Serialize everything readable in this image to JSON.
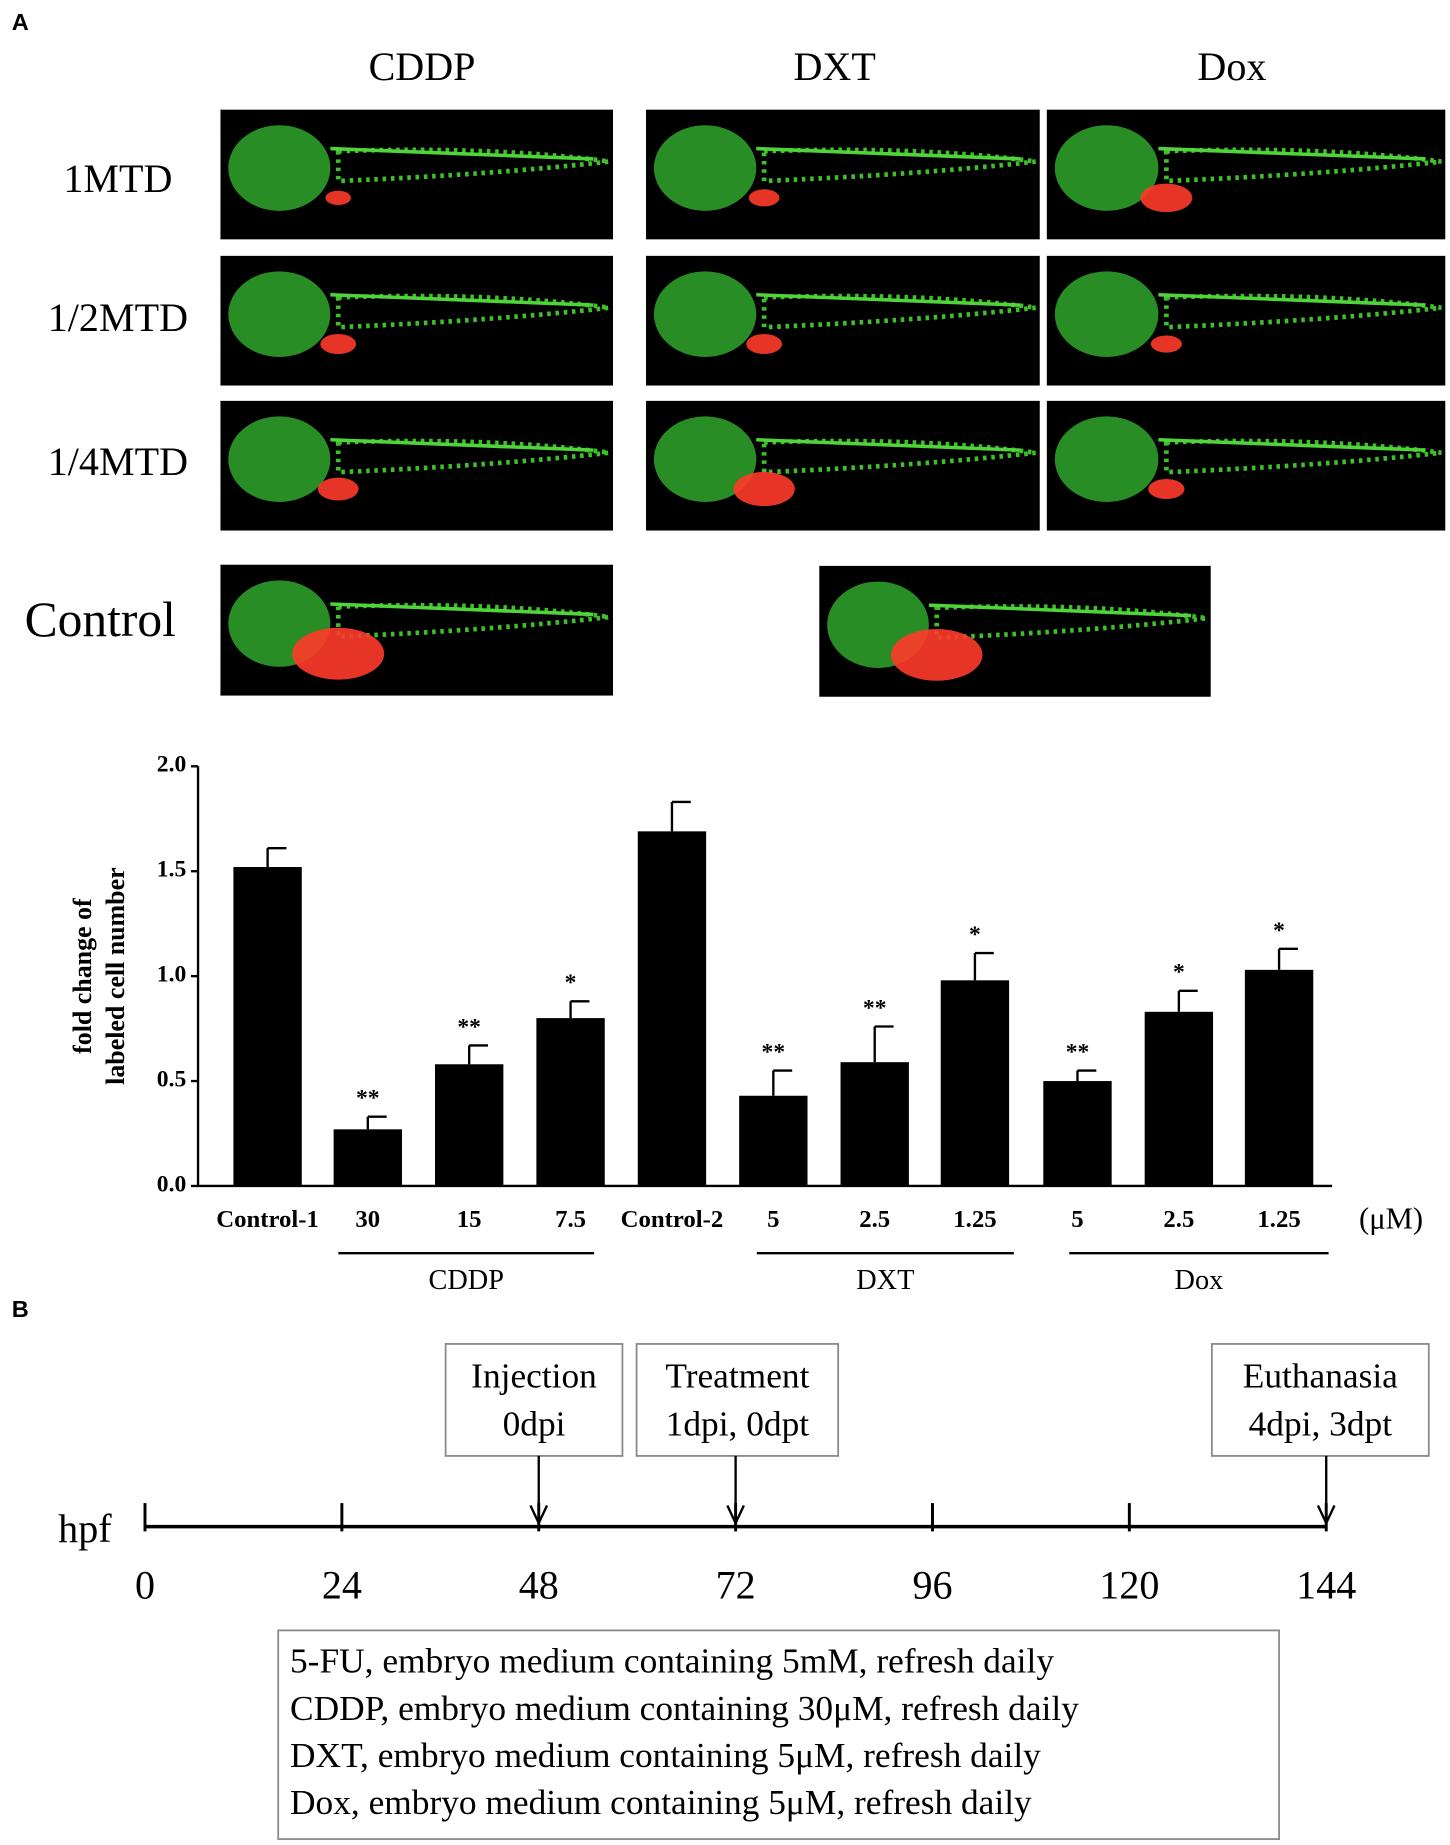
{
  "panel_a": {
    "label": "A",
    "columns": [
      "CDDP",
      "DXT",
      "Dox"
    ],
    "rows": [
      "1MTD",
      "1/2MTD",
      "1/4MTD",
      "Control"
    ]
  },
  "chart_data": {
    "type": "bar",
    "ylabel": [
      "fold change of",
      "labeled cell number"
    ],
    "categories": [
      "Control-1",
      "30",
      "15",
      "7.5",
      "Control-2",
      "5",
      "2.5",
      "1.25",
      "5",
      "2.5",
      "1.25"
    ],
    "values": [
      1.52,
      0.27,
      0.58,
      0.8,
      1.69,
      0.43,
      0.59,
      0.98,
      0.5,
      0.83,
      1.03
    ],
    "errors": [
      0.09,
      0.06,
      0.09,
      0.08,
      0.14,
      0.12,
      0.17,
      0.13,
      0.05,
      0.1,
      0.1
    ],
    "significance": [
      null,
      "**",
      "**",
      "*",
      null,
      "**",
      "**",
      "*",
      "**",
      "*",
      "*"
    ],
    "color": "#000000",
    "ylim": [
      0,
      2.0
    ],
    "yticks": [
      {
        "value": 0,
        "label": "0.0"
      },
      {
        "value": 0.5,
        "label": "0.5"
      },
      {
        "value": 1.0,
        "label": "1.0"
      },
      {
        "value": 1.5,
        "label": "1.5"
      },
      {
        "value": 2.0,
        "label": "2.0"
      }
    ],
    "unit": "(μM)",
    "groups": [
      "CDDP",
      "DXT",
      "Dox"
    ]
  },
  "panel_b": {
    "label": "B",
    "axis_label": "hpf",
    "xlim": [
      0,
      144
    ],
    "ticks": [
      0,
      24,
      48,
      72,
      96,
      120,
      144
    ],
    "events": [
      {
        "x": 48,
        "lines": [
          "Injection",
          "0dpi"
        ]
      },
      {
        "x": 72,
        "lines": [
          "Treatment",
          "1dpi, 0dpt"
        ]
      },
      {
        "x": 144,
        "lines": [
          "Euthanasia",
          "4dpi, 3dpt"
        ]
      }
    ],
    "notes": [
      "5-FU, embryo medium containing 5mM, refresh daily",
      "CDDP, embryo medium containing 30μM, refresh daily",
      "DXT, embryo medium containing 5μM, refresh daily",
      "Dox, embryo medium containing 5μM, refresh daily"
    ]
  }
}
